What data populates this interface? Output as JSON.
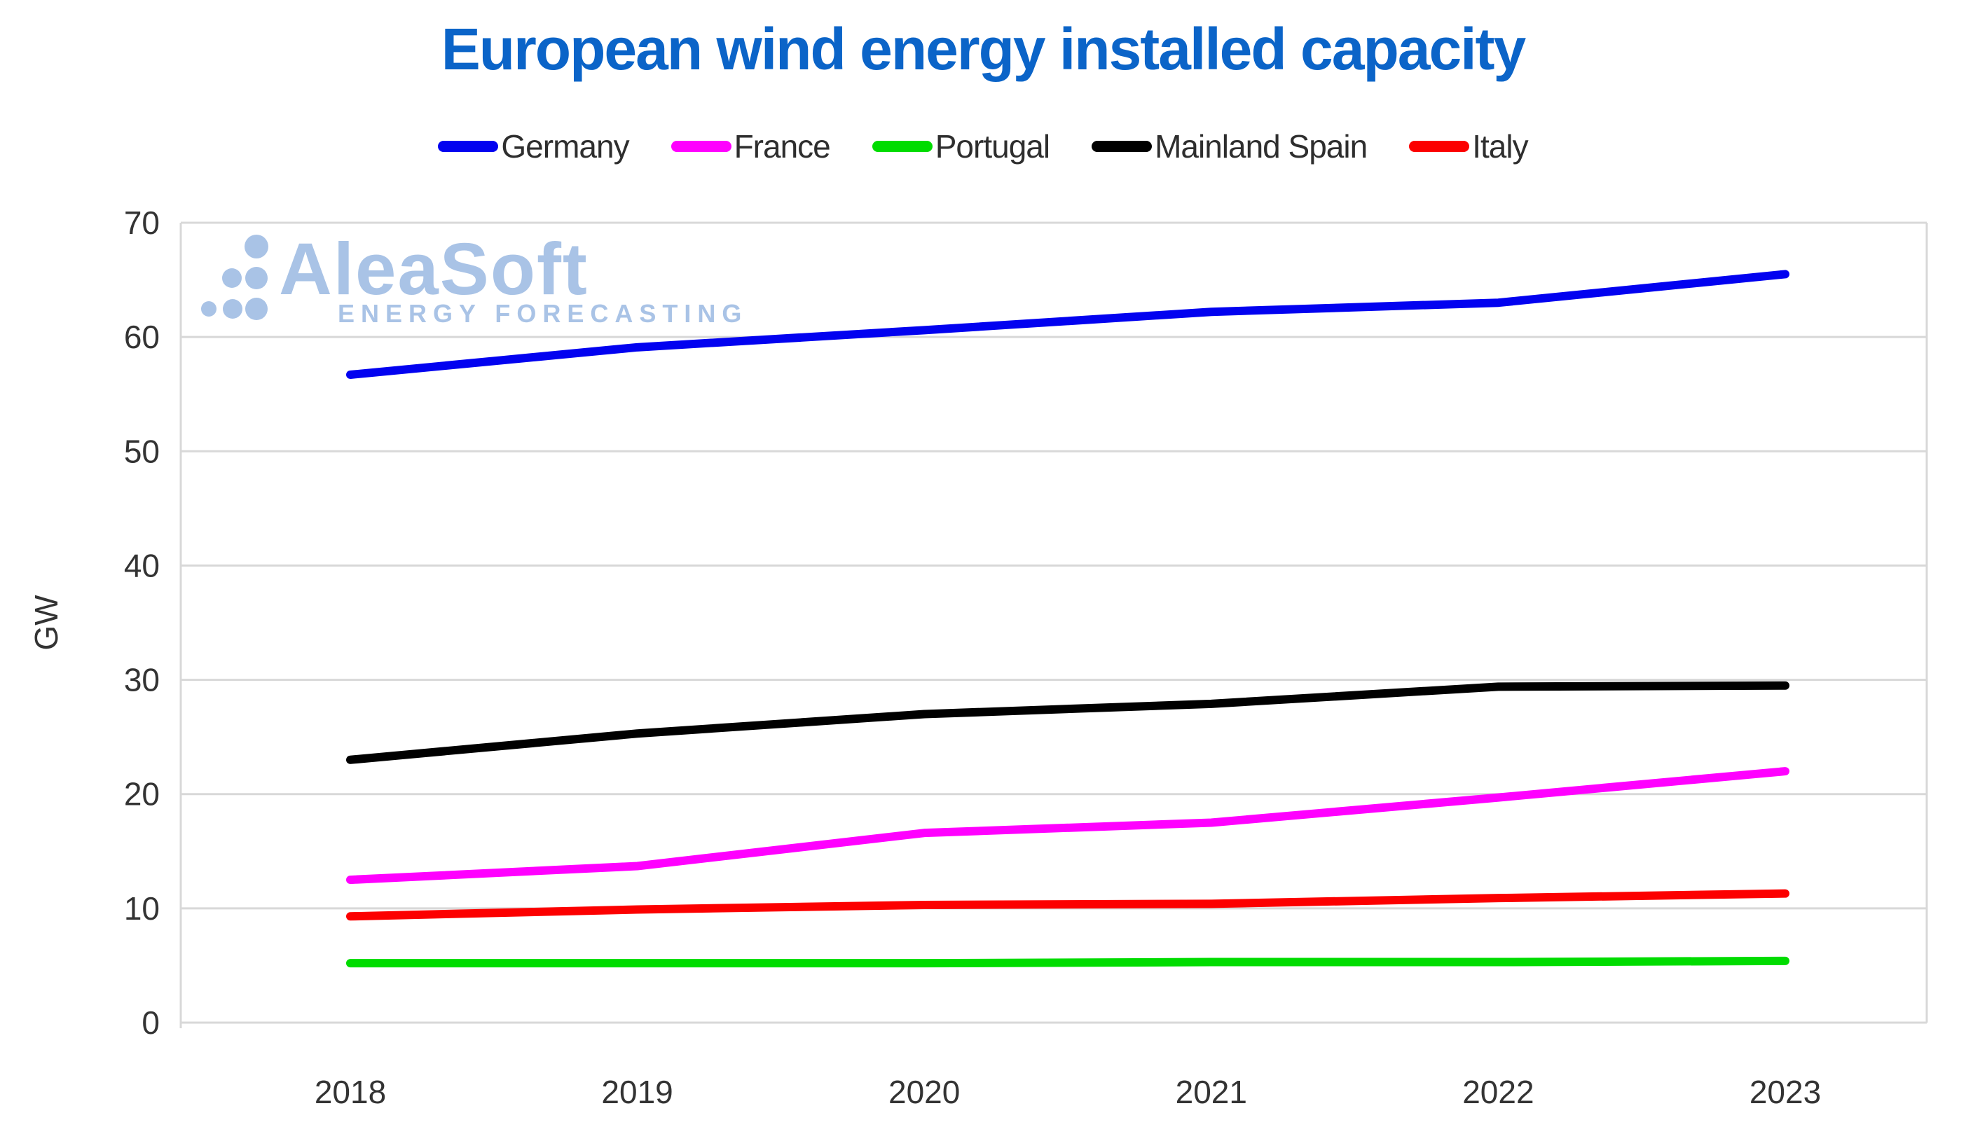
{
  "title": "European wind energy installed capacity",
  "watermark": {
    "brand": "AleaSoft",
    "subtitle": "ENERGY FORECASTING",
    "color": "#a9c3e6"
  },
  "colors": {
    "title_blue": "#0b64c8",
    "tick_text": "#333333",
    "gridline": "#d8d8d8"
  },
  "chart_data": {
    "type": "line",
    "x": [
      "2018",
      "2019",
      "2020",
      "2021",
      "2022",
      "2023"
    ],
    "series": [
      {
        "name": "Germany",
        "color": "#0202f0",
        "values": [
          56.7,
          59.1,
          60.6,
          62.2,
          63.0,
          65.5
        ]
      },
      {
        "name": "France",
        "color": "#ff00ff",
        "values": [
          12.5,
          13.7,
          16.6,
          17.5,
          19.7,
          22.0
        ]
      },
      {
        "name": "Portugal",
        "color": "#00dc00",
        "values": [
          5.2,
          5.2,
          5.2,
          5.3,
          5.3,
          5.4
        ]
      },
      {
        "name": "Mainland Spain",
        "color": "#000000",
        "values": [
          23.0,
          25.3,
          27.0,
          27.9,
          29.4,
          29.5
        ]
      },
      {
        "name": "Italy",
        "color": "#fc0000",
        "values": [
          9.3,
          9.9,
          10.3,
          10.4,
          10.9,
          11.3
        ]
      }
    ],
    "xlabel": "",
    "ylabel": "GW",
    "ylim": [
      0,
      70
    ],
    "yticks": [
      "70",
      "60",
      "50",
      "40",
      "30",
      "20",
      "10",
      "0"
    ],
    "grid": true,
    "legend_position": "top"
  }
}
